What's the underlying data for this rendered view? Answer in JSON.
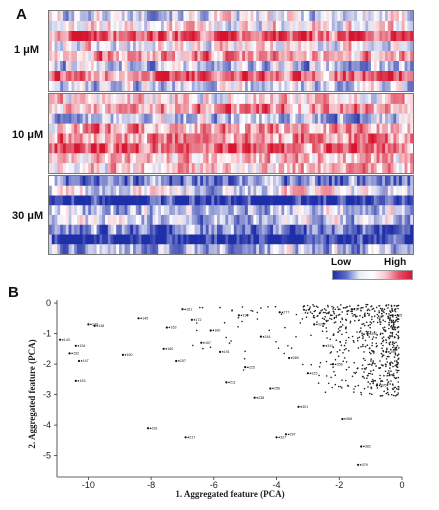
{
  "panel_a": {
    "letter": "A",
    "groups": [
      {
        "label": "1 μM"
      },
      {
        "label": "10 μM"
      },
      {
        "label": "30 μM"
      }
    ],
    "scale": {
      "low": "Low",
      "high": "High"
    },
    "colors": {
      "low": "#1f2fa8",
      "mid": "#ffffff",
      "high": "#d6152f"
    }
  },
  "panel_b": {
    "letter": "B"
  },
  "chart_data": {
    "type": "scatter",
    "xlabel": "1. Aggregated feature (PCA)",
    "ylabel": "2. Aggregated feature (PCA)",
    "xlim": [
      -11,
      0
    ],
    "ylim": [
      -5.7,
      0.1
    ],
    "x_ticks": [
      -10,
      -8,
      -6,
      -4,
      -2,
      0
    ],
    "y_ticks": [
      0,
      -1,
      -2,
      -3,
      -4,
      -5
    ],
    "grid": false,
    "points": [
      {
        "x": -10.9,
        "y": -1.2,
        "label": "●143"
      },
      {
        "x": -10.4,
        "y": -1.4,
        "label": "●154"
      },
      {
        "x": -10.0,
        "y": -0.7,
        "label": "●149"
      },
      {
        "x": -9.8,
        "y": -0.75,
        "label": "●148"
      },
      {
        "x": -10.6,
        "y": -1.65,
        "label": "●152"
      },
      {
        "x": -10.3,
        "y": -1.9,
        "label": "●147"
      },
      {
        "x": -10.4,
        "y": -2.55,
        "label": "●153"
      },
      {
        "x": -8.9,
        "y": -1.7,
        "label": "●150"
      },
      {
        "x": -8.4,
        "y": -0.5,
        "label": "●145"
      },
      {
        "x": -7.6,
        "y": -1.5,
        "label": "●160"
      },
      {
        "x": -7.2,
        "y": -1.9,
        "label": "●157"
      },
      {
        "x": -7.5,
        "y": -0.8,
        "label": "●163"
      },
      {
        "x": -7.0,
        "y": -0.2,
        "label": "●161"
      },
      {
        "x": -6.7,
        "y": -0.55,
        "label": "●172"
      },
      {
        "x": -6.4,
        "y": -1.3,
        "label": "●167"
      },
      {
        "x": -6.1,
        "y": -0.9,
        "label": "●180"
      },
      {
        "x": -5.8,
        "y": -1.6,
        "label": "●191"
      },
      {
        "x": -5.6,
        "y": -2.6,
        "label": "●211"
      },
      {
        "x": -5.2,
        "y": -0.4,
        "label": "●199"
      },
      {
        "x": -5.0,
        "y": -2.1,
        "label": "●225"
      },
      {
        "x": -4.7,
        "y": -3.1,
        "label": "●238"
      },
      {
        "x": -4.5,
        "y": -1.1,
        "label": "●244"
      },
      {
        "x": -4.2,
        "y": -2.8,
        "label": "●256"
      },
      {
        "x": -3.9,
        "y": -0.3,
        "label": "●277"
      },
      {
        "x": -3.6,
        "y": -1.8,
        "label": "●289"
      },
      {
        "x": -3.3,
        "y": -3.4,
        "label": "●301"
      },
      {
        "x": -3.0,
        "y": -2.3,
        "label": "●315"
      },
      {
        "x": -2.8,
        "y": -0.7,
        "label": "●329"
      },
      {
        "x": -2.5,
        "y": -1.4,
        "label": "●341"
      },
      {
        "x": -2.2,
        "y": -2.0,
        "label": "●356"
      },
      {
        "x": -1.9,
        "y": -3.8,
        "label": "●368"
      },
      {
        "x": -1.6,
        "y": -0.2,
        "label": "●377"
      },
      {
        "x": -1.3,
        "y": -4.7,
        "label": "●382"
      },
      {
        "x": -1.1,
        "y": -1.0,
        "label": "●390"
      },
      {
        "x": -0.8,
        "y": -2.7,
        "label": "●395"
      },
      {
        "x": -0.5,
        "y": -1.6,
        "label": "●398"
      },
      {
        "x": -0.3,
        "y": -0.4,
        "label": "●405"
      },
      {
        "x": -1.4,
        "y": -5.3,
        "label": "●379"
      },
      {
        "x": -6.9,
        "y": -4.4,
        "label": "●217"
      },
      {
        "x": -8.1,
        "y": -4.1,
        "label": "●291"
      },
      {
        "x": -4.0,
        "y": -4.4,
        "label": "●327"
      },
      {
        "x": -3.7,
        "y": -4.3,
        "label": "●297"
      }
    ]
  }
}
